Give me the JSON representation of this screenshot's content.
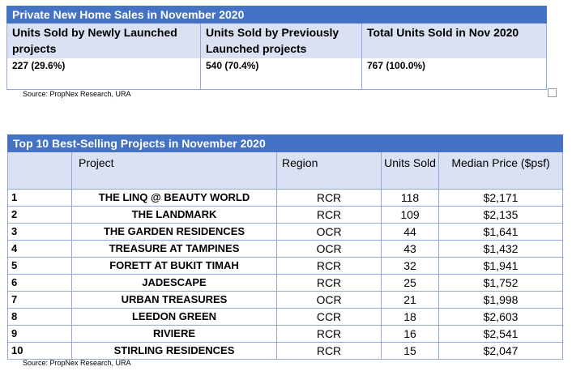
{
  "table1": {
    "title": "Private New Home Sales in November 2020",
    "headers": [
      "Units Sold by Newly Launched projects",
      "Units Sold by Previously Launched projects",
      "Total Units Sold in Nov 2020"
    ],
    "values": [
      "227 (29.6%)",
      "540 (70.4%)",
      "767 (100.0%)"
    ],
    "source": "Source: PropNex Research, URA"
  },
  "table2": {
    "title": "Top 10 Best-Selling Projects in November 2020",
    "headers": {
      "project": "Project",
      "region": "Region",
      "units": "Units Sold",
      "price": "Median Price ($psf)"
    },
    "rows": [
      {
        "rank": "1",
        "project": "THE LINQ @ BEAUTY WORLD",
        "region": "RCR",
        "units": "118",
        "price": "$2,171"
      },
      {
        "rank": "2",
        "project": "THE LANDMARK",
        "region": "RCR",
        "units": "109",
        "price": "$2,135"
      },
      {
        "rank": "3",
        "project": "THE GARDEN RESIDENCES",
        "region": "OCR",
        "units": "44",
        "price": "$1,641"
      },
      {
        "rank": "4",
        "project": "TREASURE AT TAMPINES",
        "region": "OCR",
        "units": "43",
        "price": "$1,432"
      },
      {
        "rank": "5",
        "project": "FORETT AT BUKIT TIMAH",
        "region": "RCR",
        "units": "32",
        "price": "$1,941"
      },
      {
        "rank": "6",
        "project": "JADESCAPE",
        "region": "RCR",
        "units": "25",
        "price": "$1,752"
      },
      {
        "rank": "7",
        "project": "URBAN TREASURES",
        "region": "OCR",
        "units": "21",
        "price": "$1,998"
      },
      {
        "rank": "8",
        "project": "LEEDON GREEN",
        "region": "CCR",
        "units": "18",
        "price": "$2,603"
      },
      {
        "rank": "9",
        "project": "RIVIERE",
        "region": "RCR",
        "units": "16",
        "price": "$2,541"
      },
      {
        "rank": "10",
        "project": "STIRLING RESIDENCES",
        "region": "RCR",
        "units": "15",
        "price": "$2,047"
      }
    ],
    "source": "Source: PropNex Research, URA"
  },
  "colors": {
    "title_bg": "#4472c4",
    "header_bg": "#d9e1f2",
    "border": "#8ea9db"
  }
}
